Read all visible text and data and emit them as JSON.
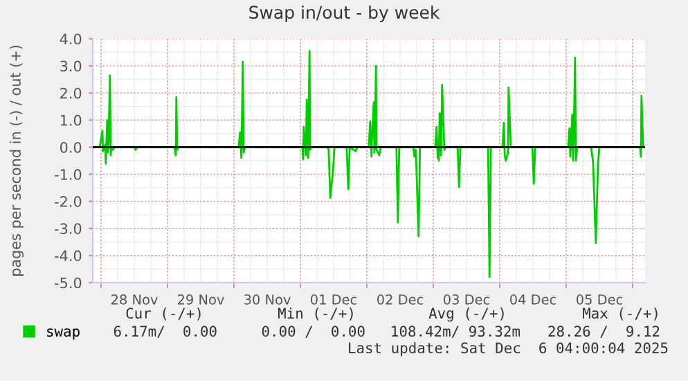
{
  "chart_data": {
    "type": "line",
    "title": "Swap in/out - by week",
    "ylabel": "pages per second in (-) / out (+)",
    "xlim": [
      "2025-11-27T21:00",
      "2025-12-06T04:30"
    ],
    "xticks": [
      {
        "value": "2025-11-28T00:00",
        "label": null
      },
      {
        "value": "2025-11-28T12:00",
        "label": "28 Nov"
      },
      {
        "value": "2025-11-29T00:00",
        "label": null
      },
      {
        "value": "2025-11-29T12:00",
        "label": "29 Nov"
      },
      {
        "value": "2025-11-30T00:00",
        "label": null
      },
      {
        "value": "2025-11-30T12:00",
        "label": "30 Nov"
      },
      {
        "value": "2025-12-01T00:00",
        "label": null
      },
      {
        "value": "2025-12-01T12:00",
        "label": "01 Dec"
      },
      {
        "value": "2025-12-02T00:00",
        "label": null
      },
      {
        "value": "2025-12-02T12:00",
        "label": "02 Dec"
      },
      {
        "value": "2025-12-03T00:00",
        "label": null
      },
      {
        "value": "2025-12-03T12:00",
        "label": "03 Dec"
      },
      {
        "value": "2025-12-04T00:00",
        "label": null
      },
      {
        "value": "2025-12-04T12:00",
        "label": "04 Dec"
      },
      {
        "value": "2025-12-05T00:00",
        "label": null
      },
      {
        "value": "2025-12-05T12:00",
        "label": "05 Dec"
      },
      {
        "value": "2025-12-06T00:00",
        "label": null
      }
    ],
    "ylim": [
      -5,
      4
    ],
    "yticks": [
      {
        "value": -5,
        "label": "-5.0"
      },
      {
        "value": -4,
        "label": "-4.0"
      },
      {
        "value": -3,
        "label": "-3.0"
      },
      {
        "value": -2,
        "label": "-2.0"
      },
      {
        "value": -1,
        "label": "-1.0"
      },
      {
        "value": 0,
        "label": "0.0"
      },
      {
        "value": 1,
        "label": "1.0"
      },
      {
        "value": 2,
        "label": "2.0"
      },
      {
        "value": 3,
        "label": "3.0"
      },
      {
        "value": 4,
        "label": "4.0"
      }
    ],
    "grid": true,
    "legend": "bottom left",
    "ref_lines": [
      {
        "axis": "y",
        "value": 0,
        "label": null,
        "color": "#000000"
      }
    ],
    "series": [
      {
        "name": "swap",
        "color": "#00cc00",
        "x": [
          "2025-11-27T21:00",
          "2025-11-27T23:30",
          "2025-11-28T00:30",
          "2025-11-28T00:42",
          "2025-11-28T01:30",
          "2025-11-28T01:42",
          "2025-11-28T02:12",
          "2025-11-28T02:30",
          "2025-11-28T02:42",
          "2025-11-28T03:12",
          "2025-11-28T03:30",
          "2025-11-28T03:42",
          "2025-11-28T04:12",
          "2025-11-28T05:00",
          "2025-11-28T12:00",
          "2025-11-28T12:30",
          "2025-11-28T13:00",
          "2025-11-29T02:30",
          "2025-11-29T03:00",
          "2025-11-29T03:12",
          "2025-11-29T03:30",
          "2025-11-29T04:00",
          "2025-11-30T01:42",
          "2025-11-30T02:12",
          "2025-11-30T02:42",
          "2025-11-30T03:12",
          "2025-11-30T03:30",
          "2025-11-30T04:00",
          "2025-12-01T00:42",
          "2025-12-01T01:00",
          "2025-12-01T01:12",
          "2025-12-01T01:42",
          "2025-12-01T02:00",
          "2025-12-01T02:18",
          "2025-12-01T02:48",
          "2025-12-01T03:18",
          "2025-12-01T03:30",
          "2025-12-01T04:00",
          "2025-12-01T09:48",
          "2025-12-01T10:12",
          "2025-12-01T10:48",
          "2025-12-01T11:48",
          "2025-12-01T12:18",
          "2025-12-01T16:42",
          "2025-12-01T17:18",
          "2025-12-01T17:48",
          "2025-12-01T20:00",
          "2025-12-01T20:30",
          "2025-12-02T00:42",
          "2025-12-02T01:12",
          "2025-12-02T01:42",
          "2025-12-02T01:48",
          "2025-12-02T02:30",
          "2025-12-02T02:42",
          "2025-12-02T02:54",
          "2025-12-02T03:18",
          "2025-12-02T03:30",
          "2025-12-02T04:30",
          "2025-12-02T05:00",
          "2025-12-02T10:42",
          "2025-12-02T11:12",
          "2025-12-02T11:42",
          "2025-12-02T16:48",
          "2025-12-02T17:12",
          "2025-12-02T17:42",
          "2025-12-02T18:42",
          "2025-12-02T19:12",
          "2025-12-03T00:42",
          "2025-12-03T01:12",
          "2025-12-03T01:36",
          "2025-12-03T01:48",
          "2025-12-03T02:00",
          "2025-12-03T02:18",
          "2025-12-03T02:42",
          "2025-12-03T02:48",
          "2025-12-03T03:12",
          "2025-12-03T04:00",
          "2025-12-03T04:30",
          "2025-12-03T08:48",
          "2025-12-03T09:18",
          "2025-12-03T09:48",
          "2025-12-03T19:48",
          "2025-12-03T20:18",
          "2025-12-03T20:48",
          "2025-12-04T01:00",
          "2025-12-04T01:30",
          "2025-12-04T01:48",
          "2025-12-04T02:12",
          "2025-12-04T03:00",
          "2025-12-04T03:12",
          "2025-12-04T04:00",
          "2025-12-04T11:48",
          "2025-12-04T12:18",
          "2025-12-04T12:48",
          "2025-12-05T00:42",
          "2025-12-05T01:12",
          "2025-12-05T01:30",
          "2025-12-05T01:42",
          "2025-12-05T02:12",
          "2025-12-05T02:30",
          "2025-12-05T02:42",
          "2025-12-05T03:12",
          "2025-12-05T03:30",
          "2025-12-05T04:00",
          "2025-12-05T09:00",
          "2025-12-05T09:42",
          "2025-12-05T10:42",
          "2025-12-05T11:30",
          "2025-12-05T12:00",
          "2025-12-06T02:42",
          "2025-12-06T03:00",
          "2025-12-06T03:12",
          "2025-12-06T03:48"
        ],
        "values": [
          0,
          0,
          0.6,
          -0.15,
          0.1,
          -0.6,
          1.0,
          -0.2,
          0.1,
          2.65,
          -0.3,
          0,
          -0.1,
          0,
          0,
          -0.1,
          0,
          0,
          -0.3,
          1.85,
          -0.1,
          0,
          0,
          0.55,
          -0.4,
          3.15,
          -0.2,
          0,
          0,
          -0.45,
          0.75,
          0.1,
          -0.3,
          1.75,
          -0.4,
          3.55,
          -0.1,
          0,
          0,
          -0.1,
          -1.87,
          -0.87,
          0,
          0,
          -1.55,
          0,
          -0.15,
          0,
          0,
          0.95,
          -0.35,
          0.2,
          1.65,
          -0.2,
          0.3,
          3.0,
          -0.1,
          -0.3,
          0,
          0,
          -2.78,
          0,
          0,
          -0.35,
          -0.1,
          -3.29,
          0,
          0,
          0.75,
          -0.4,
          0.2,
          -0.5,
          1.25,
          0.3,
          -0.3,
          2.3,
          -0.1,
          0,
          0,
          -1.47,
          0,
          0,
          -4.79,
          0,
          0,
          0.9,
          -0.3,
          -0.5,
          -0.2,
          2.2,
          0,
          0,
          -1.35,
          0,
          0,
          0.7,
          -0.35,
          0.1,
          1.2,
          -0.5,
          0.1,
          3.3,
          -0.5,
          0,
          0,
          -0.55,
          -3.54,
          -0.6,
          0,
          0,
          -0.35,
          1.9,
          0
        ]
      }
    ],
    "annotations": [
      "Cur (-/+)",
      "Min (-/+)",
      "Avg (-/+)",
      "Max (-/+)",
      "6.17m/  0.00",
      "0.00 /  0.00",
      "108.42m/ 93.32m",
      "28.26 /  9.12",
      "Last update: Sat Dec  6 04:00:04 2025"
    ]
  }
}
